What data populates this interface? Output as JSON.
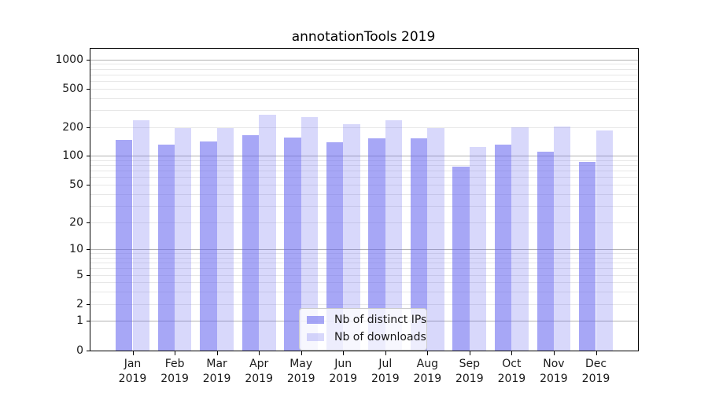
{
  "title": "annotationTools 2019",
  "chart_data": {
    "type": "bar",
    "title": "annotationTools 2019",
    "categories": [
      "Jan 2019",
      "Feb 2019",
      "Mar 2019",
      "Apr 2019",
      "May 2019",
      "Jun 2019",
      "Jul 2019",
      "Aug 2019",
      "Sep 2019",
      "Oct 2019",
      "Nov 2019",
      "Dec 2019"
    ],
    "series": [
      {
        "name": "Nb of distinct IPs",
        "color": "rgba(100,100,240,0.57)",
        "values": [
          148,
          131,
          141,
          163,
          155,
          139,
          152,
          153,
          78,
          131,
          110,
          87
        ]
      },
      {
        "name": "Nb of downloads",
        "color": "rgba(100,100,240,0.25)",
        "values": [
          237,
          193,
          194,
          266,
          254,
          213,
          237,
          193,
          124,
          200,
          203,
          184
        ]
      }
    ],
    "xlabel": "",
    "ylabel": "",
    "y_scale": "log1p",
    "y_ticks": [
      0,
      1,
      2,
      5,
      10,
      20,
      50,
      100,
      200,
      500,
      1000
    ],
    "ylim": [
      0,
      1276
    ],
    "grid": "horizontal",
    "legend_position": "lower center",
    "colors": {
      "bar_dark": "#a7a7f6",
      "bar_light": "#d9d9fb",
      "major_grid": "#b2b2b2",
      "minor_grid": "#e7e7e7",
      "spine": "#000000",
      "text": "#1a1a1a"
    }
  }
}
